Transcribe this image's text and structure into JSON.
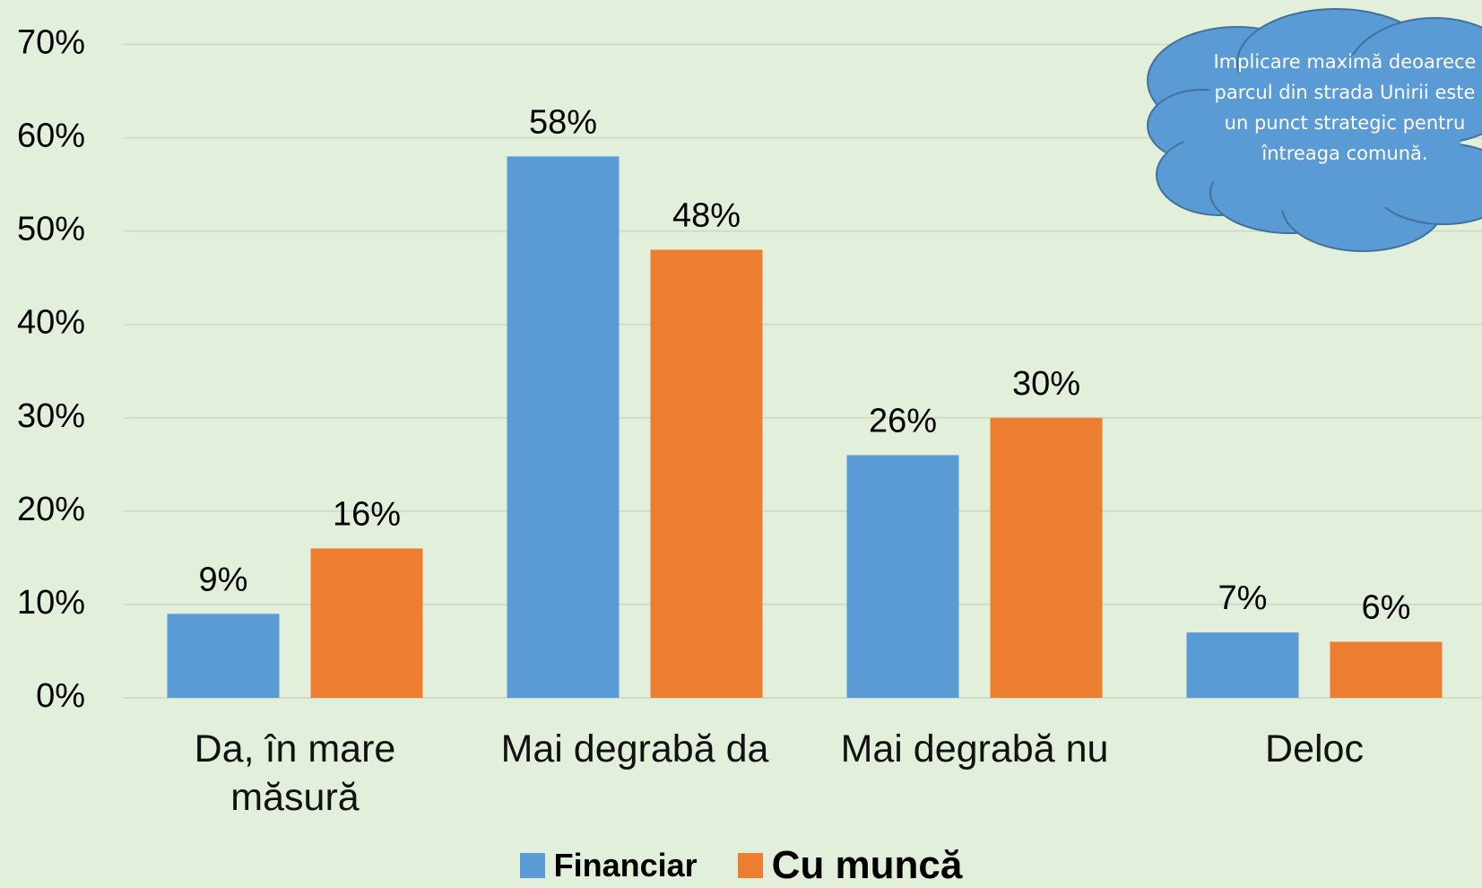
{
  "chart_data": {
    "type": "bar",
    "categories": [
      "Da, în mare măsură",
      "Mai degrabă da",
      "Mai degrabă nu",
      "Deloc"
    ],
    "series": [
      {
        "name": "Financiar",
        "color": "#5b9bd5",
        "values": [
          9,
          58,
          26,
          7
        ],
        "value_labels": [
          "9%",
          "58%",
          "26%",
          "7%"
        ]
      },
      {
        "name": "Cu muncă",
        "color": "#ed7d31",
        "values": [
          16,
          48,
          30,
          6
        ],
        "value_labels": [
          "16%",
          "48%",
          "30%",
          "6%"
        ]
      }
    ],
    "ylim": [
      0,
      70
    ],
    "yticks": [
      {
        "value": 0,
        "label": "0%"
      },
      {
        "value": 10,
        "label": "10%"
      },
      {
        "value": 20,
        "label": "20%"
      },
      {
        "value": 30,
        "label": "30%"
      },
      {
        "value": 40,
        "label": "40%"
      },
      {
        "value": 50,
        "label": "50%"
      },
      {
        "value": 60,
        "label": "60%"
      },
      {
        "value": 70,
        "label": "70%"
      }
    ],
    "grid": true,
    "annotation": "Implicare maximă deoarece parcul din strada Unirii este un punct strategic pentru întreaga comună."
  }
}
